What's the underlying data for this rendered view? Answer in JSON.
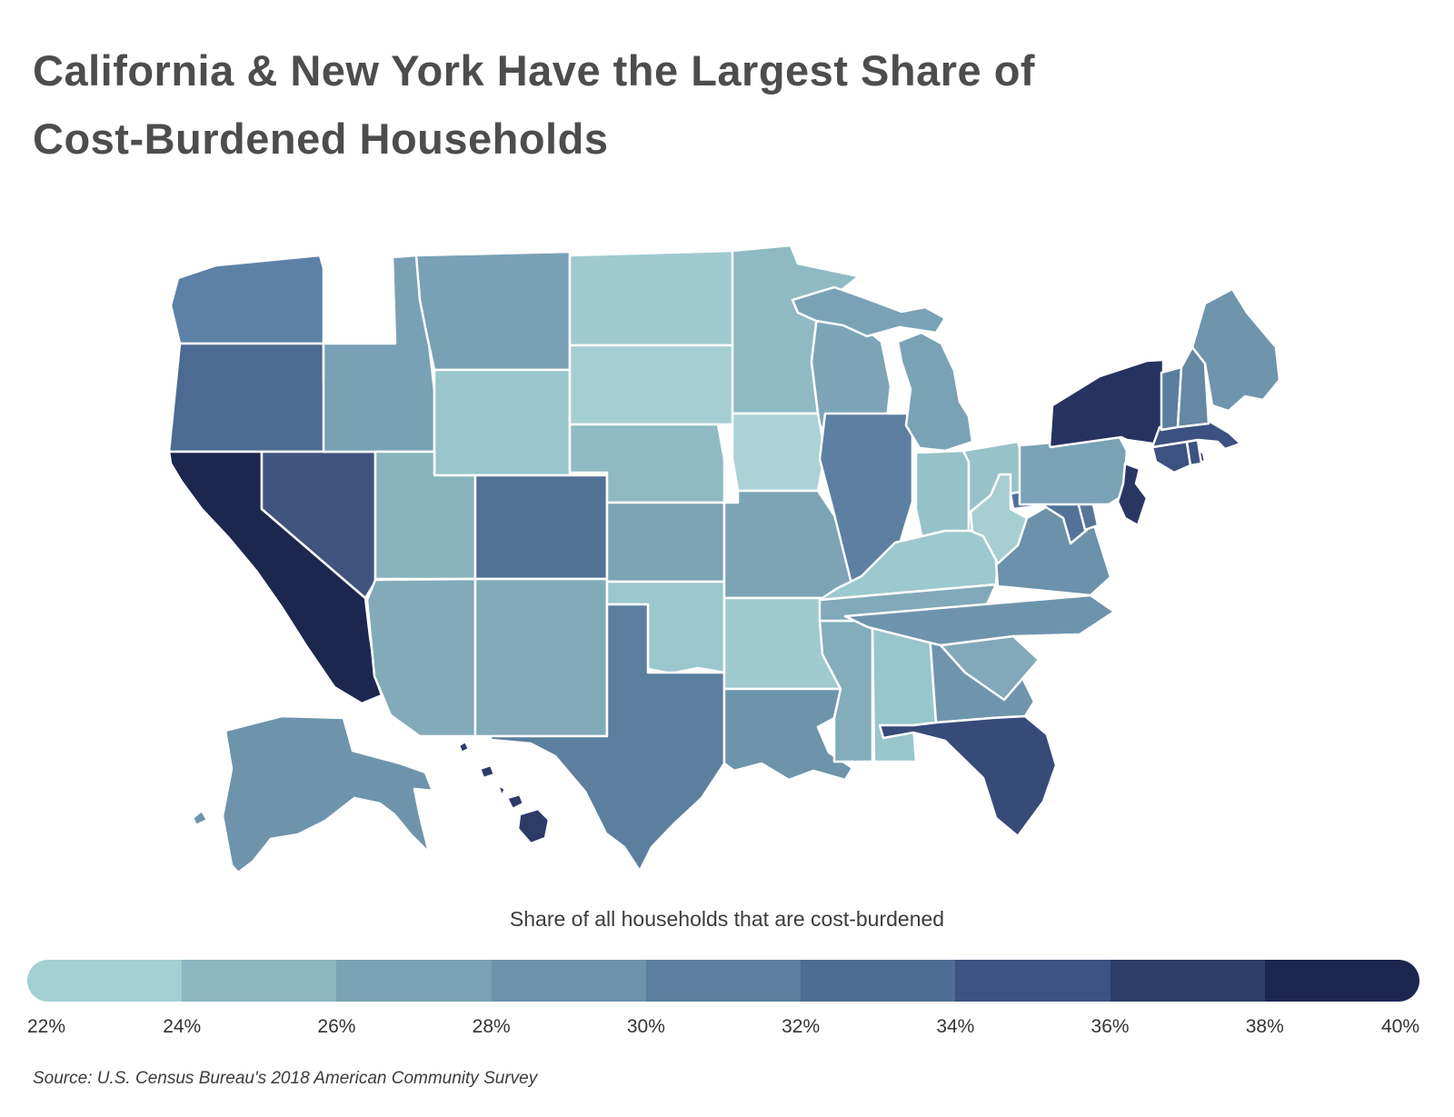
{
  "title": {
    "line1": "California & New York Have the Largest Share of",
    "line2": "Cost-Burdened Households"
  },
  "legend": {
    "title": "Share of all households that are cost-burdened",
    "tick_labels": [
      "22%",
      "24%",
      "26%",
      "28%",
      "30%",
      "32%",
      "34%",
      "36%",
      "38%",
      "40%"
    ],
    "segment_colors": [
      "#a2d0d4",
      "#8cb6c0",
      "#7aa2b5",
      "#6d93aa",
      "#5d7f9f",
      "#4e6d94",
      "#3c5280",
      "#2d3c68",
      "#1c2750"
    ]
  },
  "source": "Source: U.S. Census Bureau's 2018 American Community Survey",
  "chart_data": {
    "type": "choropleth",
    "region": "United States (states, incl. Alaska & Hawaii insets)",
    "metric": "Share of all households that are cost-burdened",
    "scale": {
      "min_pct": 22,
      "max_pct": 40,
      "step_pct": 2,
      "legend_style": "discrete segmented pill bar"
    },
    "states": [
      {
        "abbr": "CA",
        "name": "California",
        "value_pct_estimate": 39.5,
        "color": "#1c2750"
      },
      {
        "abbr": "NY",
        "name": "New York",
        "value_pct_estimate": 37.0,
        "color": "#263360"
      },
      {
        "abbr": "NJ",
        "name": "New Jersey",
        "value_pct_estimate": 36.5,
        "color": "#2a3763"
      },
      {
        "abbr": "HI",
        "name": "Hawaii",
        "value_pct_estimate": 36.5,
        "color": "#2d3b67"
      },
      {
        "abbr": "FL",
        "name": "Florida",
        "value_pct_estimate": 35.5,
        "color": "#374b79"
      },
      {
        "abbr": "MA",
        "name": "Massachusetts",
        "value_pct_estimate": 34.5,
        "color": "#3c5180"
      },
      {
        "abbr": "CT",
        "name": "Connecticut",
        "value_pct_estimate": 34.5,
        "color": "#3d5280"
      },
      {
        "abbr": "RI",
        "name": "Rhode Island",
        "value_pct_estimate": 34.5,
        "color": "#3d5280"
      },
      {
        "abbr": "NV",
        "name": "Nevada",
        "value_pct_estimate": 34.0,
        "color": "#41547f"
      },
      {
        "abbr": "OR",
        "name": "Oregon",
        "value_pct_estimate": 33.0,
        "color": "#4d6b92"
      },
      {
        "abbr": "CO",
        "name": "Colorado",
        "value_pct_estimate": 32.5,
        "color": "#527193"
      },
      {
        "abbr": "MD",
        "name": "Maryland",
        "value_pct_estimate": 32.5,
        "color": "#527299"
      },
      {
        "abbr": "DE",
        "name": "Delaware",
        "value_pct_estimate": 32.0,
        "color": "#567697"
      },
      {
        "abbr": "VT",
        "name": "Vermont",
        "value_pct_estimate": 32.0,
        "color": "#5a7da0"
      },
      {
        "abbr": "WA",
        "name": "Washington",
        "value_pct_estimate": 31.5,
        "color": "#5d81a6"
      },
      {
        "abbr": "IL",
        "name": "Illinois",
        "value_pct_estimate": 31.5,
        "color": "#5d80a2"
      },
      {
        "abbr": "TX",
        "name": "Texas",
        "value_pct_estimate": 31.5,
        "color": "#5d7f9f"
      },
      {
        "abbr": "NH",
        "name": "New Hampshire",
        "value_pct_estimate": 31.0,
        "color": "#6589a3"
      },
      {
        "abbr": "LA",
        "name": "Louisiana",
        "value_pct_estimate": 30.0,
        "color": "#6d94ab"
      },
      {
        "abbr": "GA",
        "name": "Georgia",
        "value_pct_estimate": 30.0,
        "color": "#6f95ac"
      },
      {
        "abbr": "VA",
        "name": "Virginia",
        "value_pct_estimate": 30.0,
        "color": "#6b92aa"
      },
      {
        "abbr": "NC",
        "name": "North Carolina",
        "value_pct_estimate": 30.0,
        "color": "#6e94ac"
      },
      {
        "abbr": "ME",
        "name": "Maine",
        "value_pct_estimate": 30.0,
        "color": "#6e95ac"
      },
      {
        "abbr": "AK",
        "name": "Alaska",
        "value_pct_estimate": 30.0,
        "color": "#6e94ab"
      },
      {
        "abbr": "MS",
        "name": "Mississippi",
        "value_pct_estimate": 29.0,
        "color": "#84adbc"
      },
      {
        "abbr": "AZ",
        "name": "Arizona",
        "value_pct_estimate": 28.5,
        "color": "#82aab9"
      },
      {
        "abbr": "NM",
        "name": "New Mexico",
        "value_pct_estimate": 28.5,
        "color": "#82aab9"
      },
      {
        "abbr": "TN",
        "name": "Tennessee",
        "value_pct_estimate": 28.5,
        "color": "#81a9b9"
      },
      {
        "abbr": "SC",
        "name": "South Carolina",
        "value_pct_estimate": 28.5,
        "color": "#81a9b9"
      },
      {
        "abbr": "WI",
        "name": "Wisconsin",
        "value_pct_estimate": 28.5,
        "color": "#7da5b7"
      },
      {
        "abbr": "MI",
        "name": "Michigan",
        "value_pct_estimate": 28.5,
        "color": "#7aa2b6"
      },
      {
        "abbr": "PA",
        "name": "Pennsylvania",
        "value_pct_estimate": 28.5,
        "color": "#7aa2b6"
      },
      {
        "abbr": "MT",
        "name": "Montana",
        "value_pct_estimate": 28.5,
        "color": "#79a1b5"
      },
      {
        "abbr": "ID",
        "name": "Idaho",
        "value_pct_estimate": 28.5,
        "color": "#79a1b5"
      },
      {
        "abbr": "KS",
        "name": "Kansas",
        "value_pct_estimate": 28.5,
        "color": "#7ca4b4"
      },
      {
        "abbr": "MO",
        "name": "Missouri",
        "value_pct_estimate": 28.5,
        "color": "#7ca4b4"
      },
      {
        "abbr": "UT",
        "name": "Utah",
        "value_pct_estimate": 27.5,
        "color": "#89b4be"
      },
      {
        "abbr": "MN",
        "name": "Minnesota",
        "value_pct_estimate": 27.0,
        "color": "#8fbac3"
      },
      {
        "abbr": "NE",
        "name": "Nebraska",
        "value_pct_estimate": 27.0,
        "color": "#8fbac3"
      },
      {
        "abbr": "IN",
        "name": "Indiana",
        "value_pct_estimate": 26.0,
        "color": "#95c1c8"
      },
      {
        "abbr": "OH",
        "name": "Ohio",
        "value_pct_estimate": 26.0,
        "color": "#97c2c9"
      },
      {
        "abbr": "WY",
        "name": "Wyoming",
        "value_pct_estimate": 25.5,
        "color": "#99c6cd"
      },
      {
        "abbr": "AL",
        "name": "Alabama",
        "value_pct_estimate": 25.5,
        "color": "#98c6cd"
      },
      {
        "abbr": "OK",
        "name": "Oklahoma",
        "value_pct_estimate": 25.5,
        "color": "#9ac7ce"
      },
      {
        "abbr": "KY",
        "name": "Kentucky",
        "value_pct_estimate": 25.5,
        "color": "#9cc8cf"
      },
      {
        "abbr": "ND",
        "name": "North Dakota",
        "value_pct_estimate": 25.0,
        "color": "#9fcad0"
      },
      {
        "abbr": "AR",
        "name": "Arkansas",
        "value_pct_estimate": 25.0,
        "color": "#9ecad0"
      },
      {
        "abbr": "SD",
        "name": "South Dakota",
        "value_pct_estimate": 24.0,
        "color": "#a5ced3"
      },
      {
        "abbr": "WV",
        "name": "West Virginia",
        "value_pct_estimate": 24.0,
        "color": "#a6ced3"
      },
      {
        "abbr": "IA",
        "name": "Iowa",
        "value_pct_estimate": 23.0,
        "color": "#aad2d6"
      }
    ]
  }
}
